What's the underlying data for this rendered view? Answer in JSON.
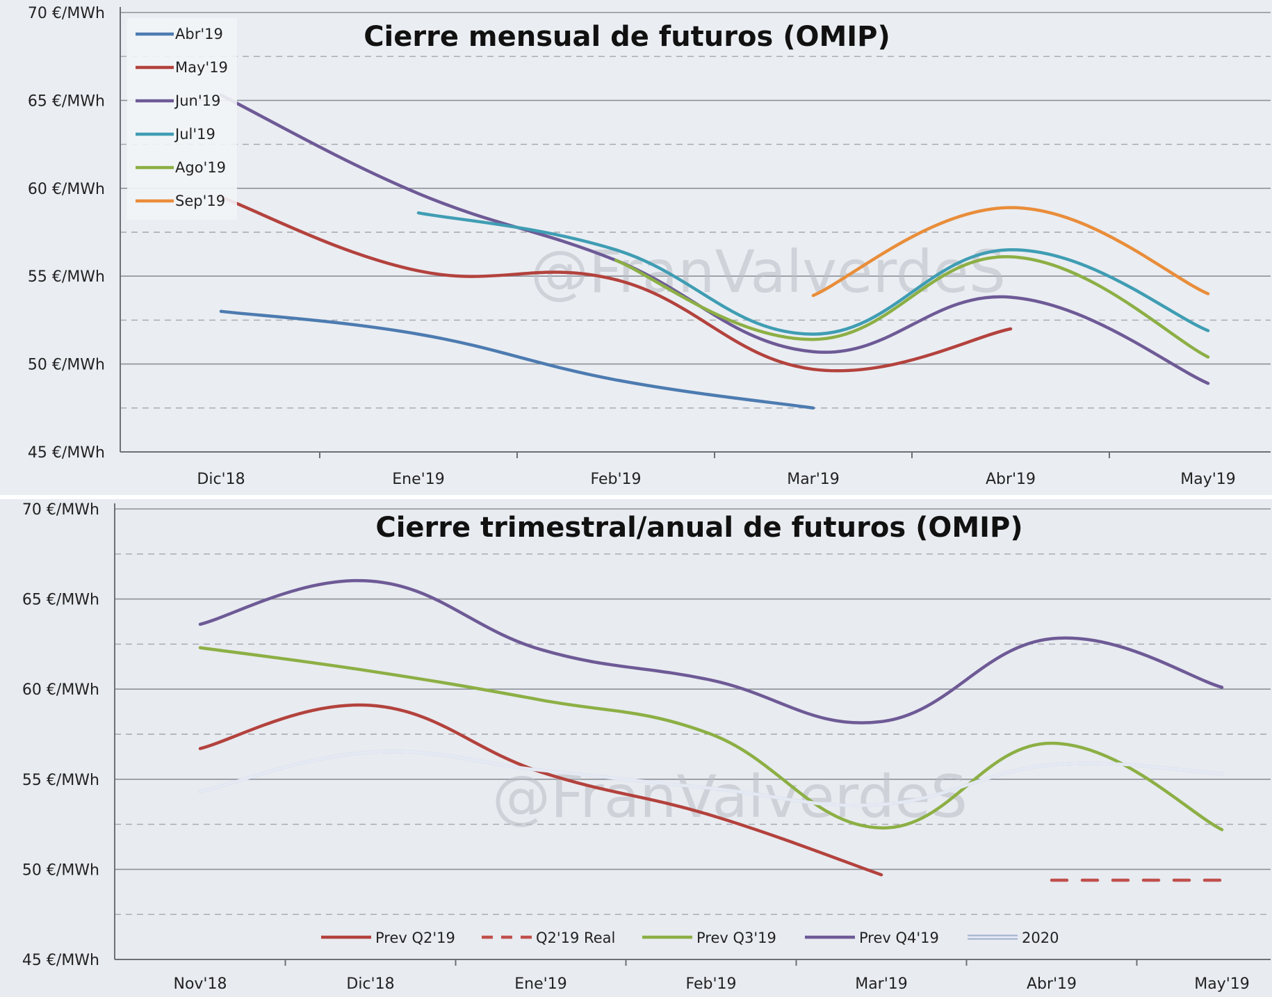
{
  "chart_data": [
    {
      "type": "line",
      "title": "Cierre mensual de futuros (OMIP)",
      "watermark": "@FranValverdeS",
      "x_categories": [
        "Dic'18",
        "Ene'19",
        "Feb'19",
        "Mar'19",
        "Abr'19",
        "May'19"
      ],
      "y_ticks": [
        "45 €/MWh",
        "50 €/MWh",
        "55 €/MWh",
        "60 €/MWh",
        "65 €/MWh",
        "70 €/MWh"
      ],
      "ylim": [
        45,
        70
      ],
      "grid": true,
      "legend_position": "top-left",
      "series": [
        {
          "name": "Abr'19",
          "color": "#4c7bb0",
          "x": [
            0,
            1,
            2,
            3
          ],
          "values": [
            53.0,
            51.7,
            49.1,
            47.5
          ]
        },
        {
          "name": "May'19",
          "color": "#b3423d",
          "x": [
            0,
            1,
            2,
            3,
            4
          ],
          "values": [
            59.5,
            55.3,
            54.8,
            49.7,
            52.0
          ]
        },
        {
          "name": "Jun'19",
          "color": "#6e5a96",
          "x": [
            0,
            1,
            2,
            3,
            4,
            5
          ],
          "values": [
            65.3,
            59.7,
            55.9,
            50.7,
            53.8,
            48.9
          ]
        },
        {
          "name": "Jul'19",
          "color": "#3f9db3",
          "x": [
            1,
            2,
            3,
            4,
            5
          ],
          "values": [
            58.6,
            56.5,
            51.7,
            56.5,
            51.9
          ]
        },
        {
          "name": "Ago'19",
          "color": "#8caf44",
          "x": [
            2,
            3,
            4,
            5
          ],
          "values": [
            55.9,
            51.4,
            56.1,
            50.4
          ]
        },
        {
          "name": "Sep'19",
          "color": "#e98d3a",
          "x": [
            3,
            4,
            5
          ],
          "values": [
            53.9,
            58.9,
            54.0
          ]
        }
      ]
    },
    {
      "type": "line",
      "title": "Cierre trimestral/anual de futuros (OMIP)",
      "watermark": "@FranValverdeS",
      "x_categories": [
        "Nov'18",
        "Dic'18",
        "Ene'19",
        "Feb'19",
        "Mar'19",
        "Abr'19",
        "May'19"
      ],
      "y_ticks": [
        "45 €/MWh",
        "50 €/MWh",
        "55 €/MWh",
        "60 €/MWh",
        "65 €/MWh",
        "70 €/MWh"
      ],
      "ylim": [
        45,
        70
      ],
      "grid": true,
      "legend_position": "bottom",
      "series": [
        {
          "name": "Prev Q2'19",
          "color": "#b3423d",
          "dashed": false,
          "x": [
            0,
            1,
            2,
            3,
            4
          ],
          "values": [
            56.7,
            59.1,
            55.4,
            53.0,
            49.7
          ]
        },
        {
          "name": "Q2'19 Real",
          "color": "#c0504d",
          "dashed": true,
          "x": [
            5,
            6
          ],
          "values": [
            49.4,
            49.4
          ]
        },
        {
          "name": "Prev Q3'19",
          "color": "#8caf44",
          "dashed": false,
          "x": [
            0,
            1,
            2,
            3,
            4,
            5,
            6
          ],
          "values": [
            62.3,
            61.0,
            59.4,
            57.5,
            52.3,
            57.0,
            52.2
          ]
        },
        {
          "name": "Prev Q4'19",
          "color": "#6e5a96",
          "dashed": false,
          "x": [
            0,
            1,
            2,
            3,
            4,
            5,
            6
          ],
          "values": [
            63.6,
            66.0,
            62.2,
            60.5,
            58.2,
            62.8,
            60.1
          ]
        },
        {
          "name": "2020",
          "color": "#b9c7e0",
          "dashed": false,
          "x": [
            0,
            1,
            2,
            3,
            4,
            5,
            6
          ],
          "values": [
            54.3,
            56.5,
            55.5,
            54.5,
            53.6,
            55.8,
            55.3
          ]
        }
      ]
    }
  ]
}
